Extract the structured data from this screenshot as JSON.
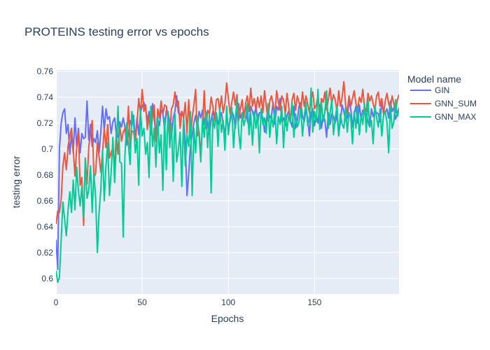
{
  "chart_data": {
    "type": "line",
    "title": "PROTEINS testing error vs epochs",
    "xlabel": "Epochs",
    "ylabel": "testing error",
    "xlim": [
      0,
      199
    ],
    "ylim": [
      0.588,
      0.761
    ],
    "grid": true,
    "legend_title": "Model name",
    "legend_placement": "top-right outside",
    "x_ticks": [
      0,
      50,
      100,
      150
    ],
    "x_tick_labels": [
      "0",
      "50",
      "100",
      "150"
    ],
    "y_ticks": [
      0.6,
      0.62,
      0.64,
      0.66,
      0.68,
      0.7,
      0.72,
      0.74,
      0.76
    ],
    "y_tick_labels": [
      "0.6",
      "0.62",
      "0.64",
      "0.66",
      "0.68",
      "0.7",
      "0.72",
      "0.74",
      "0.76"
    ],
    "series": [
      {
        "name": "GIN",
        "color": "#636efa",
        "values": [
          0.63,
          0.607,
          0.7,
          0.72,
          0.728,
          0.731,
          0.712,
          0.719,
          0.696,
          0.711,
          0.697,
          0.724,
          0.702,
          0.716,
          0.697,
          0.712,
          0.708,
          0.709,
          0.737,
          0.707,
          0.719,
          0.702,
          0.708,
          0.705,
          0.714,
          0.697,
          0.713,
          0.733,
          0.714,
          0.731,
          0.723,
          0.725,
          0.712,
          0.721,
          0.724,
          0.712,
          0.709,
          0.721,
          0.717,
          0.724,
          0.717,
          0.703,
          0.711,
          0.722,
          0.718,
          0.726,
          0.707,
          0.724,
          0.711,
          0.728,
          0.733,
          0.736,
          0.731,
          0.722,
          0.729,
          0.716,
          0.735,
          0.723,
          0.711,
          0.723,
          0.718,
          0.73,
          0.728,
          0.715,
          0.73,
          0.728,
          0.721,
          0.709,
          0.724,
          0.729,
          0.741,
          0.728,
          0.726,
          0.729,
          0.725,
          0.705,
          0.664,
          0.681,
          0.702,
          0.711,
          0.72,
          0.726,
          0.716,
          0.729,
          0.724,
          0.73,
          0.719,
          0.728,
          0.719,
          0.711,
          0.722,
          0.729,
          0.723,
          0.728,
          0.719,
          0.724,
          0.728,
          0.719,
          0.712,
          0.724,
          0.718,
          0.721,
          0.729,
          0.726,
          0.716,
          0.728,
          0.735,
          0.724,
          0.728,
          0.727,
          0.733,
          0.722,
          0.717,
          0.733,
          0.729,
          0.724,
          0.733,
          0.72,
          0.728,
          0.728,
          0.724,
          0.713,
          0.722,
          0.731,
          0.724,
          0.726,
          0.736,
          0.719,
          0.733,
          0.73,
          0.739,
          0.721,
          0.724,
          0.718,
          0.726,
          0.729,
          0.722,
          0.717,
          0.733,
          0.716,
          0.722,
          0.733,
          0.736,
          0.725,
          0.721,
          0.73,
          0.724,
          0.71,
          0.728,
          0.731,
          0.718,
          0.726,
          0.72,
          0.734,
          0.716,
          0.726,
          0.722,
          0.709,
          0.728,
          0.719,
          0.727,
          0.725,
          0.72,
          0.727,
          0.711,
          0.721,
          0.734,
          0.729,
          0.722,
          0.724,
          0.737,
          0.731,
          0.717,
          0.727,
          0.733,
          0.72,
          0.734,
          0.723,
          0.73,
          0.729,
          0.727,
          0.721,
          0.717,
          0.731,
          0.725,
          0.73,
          0.728,
          0.727,
          0.721,
          0.735,
          0.73,
          0.728,
          0.731,
          0.724,
          0.737,
          0.729,
          0.732,
          0.723,
          0.728,
          0.731,
          0.735,
          0.726,
          0.706
        ]
      },
      {
        "name": "GNN_SUM",
        "color": "#ef553b",
        "values": [
          0.642,
          0.652,
          0.651,
          0.661,
          0.687,
          0.697,
          0.684,
          0.702,
          0.71,
          0.716,
          0.7,
          0.679,
          0.701,
          0.713,
          0.672,
          0.678,
          0.641,
          0.693,
          0.673,
          0.701,
          0.713,
          0.722,
          0.678,
          0.681,
          0.705,
          0.694,
          0.682,
          0.697,
          0.716,
          0.701,
          0.719,
          0.693,
          0.697,
          0.701,
          0.686,
          0.712,
          0.696,
          0.718,
          0.706,
          0.713,
          0.716,
          0.707,
          0.733,
          0.7,
          0.714,
          0.713,
          0.706,
          0.72,
          0.739,
          0.727,
          0.746,
          0.729,
          0.734,
          0.715,
          0.726,
          0.711,
          0.725,
          0.734,
          0.706,
          0.731,
          0.724,
          0.737,
          0.727,
          0.734,
          0.733,
          0.723,
          0.711,
          0.731,
          0.734,
          0.744,
          0.733,
          0.737,
          0.716,
          0.729,
          0.724,
          0.736,
          0.712,
          0.738,
          0.708,
          0.724,
          0.734,
          0.746,
          0.71,
          0.714,
          0.696,
          0.718,
          0.745,
          0.716,
          0.73,
          0.727,
          0.74,
          0.733,
          0.722,
          0.738,
          0.739,
          0.73,
          0.741,
          0.728,
          0.735,
          0.751,
          0.739,
          0.727,
          0.736,
          0.744,
          0.734,
          0.742,
          0.722,
          0.731,
          0.738,
          0.724,
          0.735,
          0.741,
          0.729,
          0.747,
          0.733,
          0.739,
          0.73,
          0.74,
          0.732,
          0.741,
          0.728,
          0.745,
          0.733,
          0.722,
          0.737,
          0.741,
          0.734,
          0.727,
          0.745,
          0.736,
          0.73,
          0.741,
          0.738,
          0.727,
          0.743,
          0.733,
          0.721,
          0.738,
          0.743,
          0.73,
          0.741,
          0.736,
          0.729,
          0.744,
          0.733,
          0.741,
          0.735,
          0.728,
          0.738,
          0.744,
          0.731,
          0.734,
          0.741,
          0.727,
          0.739,
          0.736,
          0.744,
          0.73,
          0.738,
          0.747,
          0.735,
          0.742,
          0.738,
          0.729,
          0.745,
          0.733,
          0.74,
          0.752,
          0.734,
          0.728,
          0.741,
          0.733,
          0.739,
          0.745,
          0.735,
          0.731,
          0.74,
          0.736,
          0.746,
          0.732,
          0.729,
          0.743,
          0.737,
          0.741,
          0.735,
          0.73,
          0.741,
          0.744,
          0.733,
          0.739,
          0.727,
          0.737,
          0.743,
          0.735,
          0.731,
          0.741,
          0.735,
          0.728,
          0.738,
          0.742
        ]
      },
      {
        "name": "GNN_MAX",
        "color": "#00cc96",
        "values": [
          0.606,
          0.597,
          0.601,
          0.63,
          0.659,
          0.646,
          0.633,
          0.653,
          0.667,
          0.651,
          0.676,
          0.653,
          0.686,
          0.668,
          0.656,
          0.671,
          0.647,
          0.692,
          0.662,
          0.668,
          0.687,
          0.651,
          0.681,
          0.662,
          0.62,
          0.651,
          0.669,
          0.699,
          0.66,
          0.687,
          0.705,
          0.664,
          0.682,
          0.709,
          0.674,
          0.702,
          0.733,
          0.69,
          0.689,
          0.632,
          0.695,
          0.72,
          0.703,
          0.688,
          0.729,
          0.721,
          0.697,
          0.708,
          0.672,
          0.731,
          0.71,
          0.716,
          0.696,
          0.705,
          0.678,
          0.733,
          0.702,
          0.716,
          0.686,
          0.725,
          0.697,
          0.711,
          0.668,
          0.724,
          0.684,
          0.729,
          0.701,
          0.72,
          0.675,
          0.727,
          0.69,
          0.699,
          0.713,
          0.671,
          0.723,
          0.687,
          0.711,
          0.702,
          0.729,
          0.664,
          0.716,
          0.697,
          0.725,
          0.711,
          0.69,
          0.723,
          0.709,
          0.729,
          0.701,
          0.727,
          0.666,
          0.724,
          0.716,
          0.728,
          0.702,
          0.731,
          0.713,
          0.722,
          0.699,
          0.733,
          0.711,
          0.724,
          0.732,
          0.701,
          0.721,
          0.738,
          0.713,
          0.7,
          0.728,
          0.718,
          0.724,
          0.735,
          0.711,
          0.727,
          0.703,
          0.729,
          0.716,
          0.727,
          0.697,
          0.731,
          0.719,
          0.724,
          0.712,
          0.735,
          0.709,
          0.726,
          0.717,
          0.731,
          0.704,
          0.725,
          0.719,
          0.733,
          0.701,
          0.728,
          0.714,
          0.726,
          0.72,
          0.736,
          0.709,
          0.727,
          0.717,
          0.721,
          0.732,
          0.71,
          0.725,
          0.736,
          0.718,
          0.722,
          0.747,
          0.713,
          0.729,
          0.721,
          0.746,
          0.715,
          0.736,
          0.721,
          0.729,
          0.745,
          0.716,
          0.727,
          0.738,
          0.711,
          0.724,
          0.733,
          0.71,
          0.727,
          0.719,
          0.716,
          0.732,
          0.713,
          0.728,
          0.724,
          0.704,
          0.729,
          0.716,
          0.733,
          0.711,
          0.726,
          0.719,
          0.735,
          0.713,
          0.738,
          0.717,
          0.722,
          0.704,
          0.733,
          0.724,
          0.717,
          0.731,
          0.71,
          0.726,
          0.729,
          0.721,
          0.697,
          0.734,
          0.716,
          0.721,
          0.738,
          0.725,
          0.73,
          0.727,
          0.732,
          0.735
        ]
      }
    ]
  }
}
